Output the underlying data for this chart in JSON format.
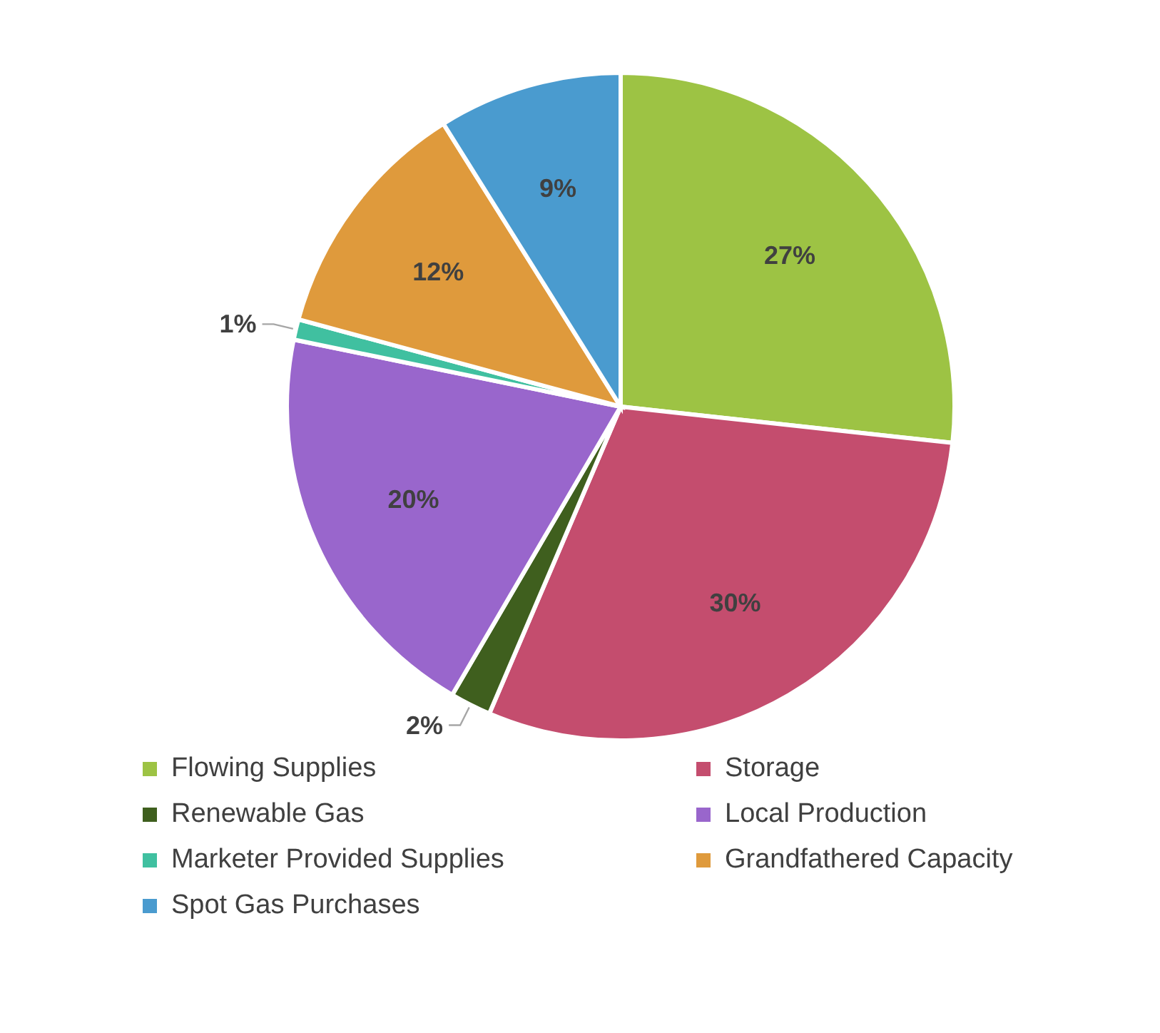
{
  "chart_data": {
    "type": "pie",
    "categories": [
      "Flowing Supplies",
      "Storage",
      "Renewable Gas",
      "Local Production",
      "Marketer Provided Supplies",
      "Grandfathered Capacity",
      "Spot Gas Purchases"
    ],
    "values": [
      27,
      30,
      2,
      20,
      1,
      12,
      9
    ],
    "colors": [
      "#9dc344",
      "#c44d6e",
      "#3f5f1e",
      "#9966cc",
      "#40c0a0",
      "#df9a3c",
      "#4a9bcf"
    ],
    "value_labels": [
      "27%",
      "30%",
      "2%",
      "20%",
      "1%",
      "12%",
      "9%"
    ],
    "legend": "bottom"
  }
}
